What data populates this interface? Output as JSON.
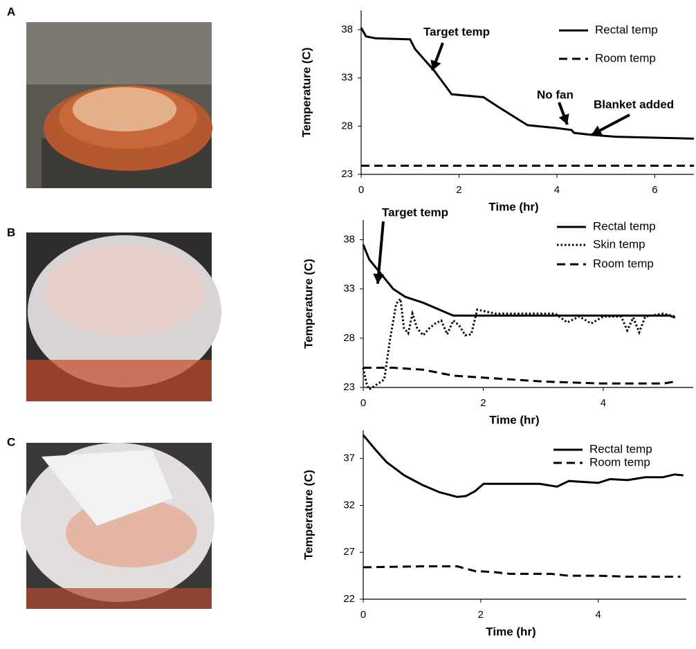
{
  "chart_data": [
    {
      "type": "line",
      "panel": "A",
      "xlabel": "Time (hr)",
      "ylabel": "Temperature (C)",
      "xlim": [
        0,
        6.8
      ],
      "xticks": [
        0,
        2,
        4,
        6
      ],
      "ylim": [
        23,
        40
      ],
      "yticks": [
        23,
        28,
        33,
        38
      ],
      "annotations": [
        "Target temp",
        "No fan",
        "Blanket added"
      ],
      "series": [
        {
          "name": "Rectal temp",
          "color": "#000000",
          "dash": "solid",
          "x": [
            0,
            0.1,
            0.3,
            1,
            1.1,
            1.5,
            1.85,
            2.5,
            2.8,
            3.4,
            4,
            4.3,
            4.35,
            4.7,
            5.2,
            6,
            6.8
          ],
          "values": [
            38.2,
            37.3,
            37.1,
            37,
            36,
            33.7,
            31.3,
            31,
            30,
            28.1,
            27.8,
            27.6,
            27.3,
            27.1,
            26.9,
            26.8,
            26.7
          ]
        },
        {
          "name": "Room temp",
          "color": "#000000",
          "dash": "dashed",
          "x": [
            0,
            6.8
          ],
          "values": [
            23.9,
            23.9
          ]
        }
      ]
    },
    {
      "type": "line",
      "panel": "B",
      "xlabel": "Time (hr)",
      "ylabel": "Temperature (C)",
      "xlim": [
        0,
        5.5
      ],
      "xticks": [
        0,
        2,
        4
      ],
      "ylim": [
        23,
        40
      ],
      "yticks": [
        23,
        28,
        33,
        38
      ],
      "annotations": [
        "Target temp"
      ],
      "series": [
        {
          "name": "Rectal temp",
          "color": "#000000",
          "dash": "solid",
          "x": [
            0,
            0.1,
            0.3,
            0.5,
            0.7,
            1,
            1.5,
            5.1,
            5.2
          ],
          "values": [
            37.5,
            36,
            34.5,
            33,
            32.2,
            31.6,
            30.3,
            30.3,
            30.1
          ]
        },
        {
          "name": "Skin temp",
          "color": "#000000",
          "dash": "dotted",
          "x": [
            0,
            0.05,
            0.1,
            0.2,
            0.35,
            0.45,
            0.55,
            0.62,
            0.68,
            0.75,
            0.82,
            0.9,
            1.0,
            1.1,
            1.2,
            1.3,
            1.4,
            1.5,
            1.6,
            1.7,
            1.8,
            1.9,
            2.2,
            3.2,
            3.4,
            3.6,
            3.8,
            4.0,
            4.3,
            4.4,
            4.5,
            4.6,
            4.7,
            5.0,
            5.2
          ],
          "values": [
            25,
            23.5,
            22.8,
            23.2,
            23.8,
            28,
            31.5,
            32,
            29,
            28.5,
            30.5,
            29,
            28.3,
            29,
            29.5,
            29.8,
            28.4,
            29.8,
            29.3,
            28.3,
            28.4,
            30.9,
            30.5,
            30.5,
            29.6,
            30.2,
            29.5,
            30.2,
            30.2,
            28.8,
            30.1,
            28.6,
            30.2,
            30.5,
            30.2
          ]
        },
        {
          "name": "Room temp",
          "color": "#000000",
          "dash": "dashed",
          "x": [
            0,
            0.5,
            1,
            1.5,
            2,
            3,
            4,
            5,
            5.2
          ],
          "values": [
            25,
            25,
            24.8,
            24.2,
            24,
            23.6,
            23.4,
            23.4,
            23.6
          ]
        }
      ]
    },
    {
      "type": "line",
      "panel": "C",
      "xlabel": "Time (hr)",
      "ylabel": "Temperature (C)",
      "xlim": [
        0,
        5.5
      ],
      "xticks": [
        0,
        2,
        4
      ],
      "ylim": [
        22,
        40
      ],
      "yticks": [
        22,
        27,
        32,
        37
      ],
      "annotations": [],
      "series": [
        {
          "name": "Rectal temp",
          "color": "#000000",
          "dash": "solid",
          "x": [
            0,
            0.2,
            0.4,
            0.7,
            1,
            1.3,
            1.6,
            1.75,
            1.9,
            2.05,
            2.5,
            3,
            3.3,
            3.5,
            4,
            4.2,
            4.5,
            4.8,
            5.1,
            5.3,
            5.45
          ],
          "values": [
            39.5,
            38,
            36.6,
            35.2,
            34.2,
            33.4,
            32.9,
            33,
            33.5,
            34.3,
            34.3,
            34.3,
            34,
            34.6,
            34.4,
            34.8,
            34.7,
            35,
            35,
            35.3,
            35.2
          ]
        },
        {
          "name": "Room temp",
          "color": "#000000",
          "dash": "dashed",
          "x": [
            0,
            1,
            1.6,
            1.9,
            2.2,
            2.5,
            3.2,
            3.5,
            4,
            4.5,
            5,
            5.4
          ],
          "values": [
            25.4,
            25.5,
            25.5,
            25,
            24.9,
            24.7,
            24.7,
            24.5,
            24.5,
            24.4,
            24.4,
            24.4
          ]
        }
      ]
    }
  ]
}
